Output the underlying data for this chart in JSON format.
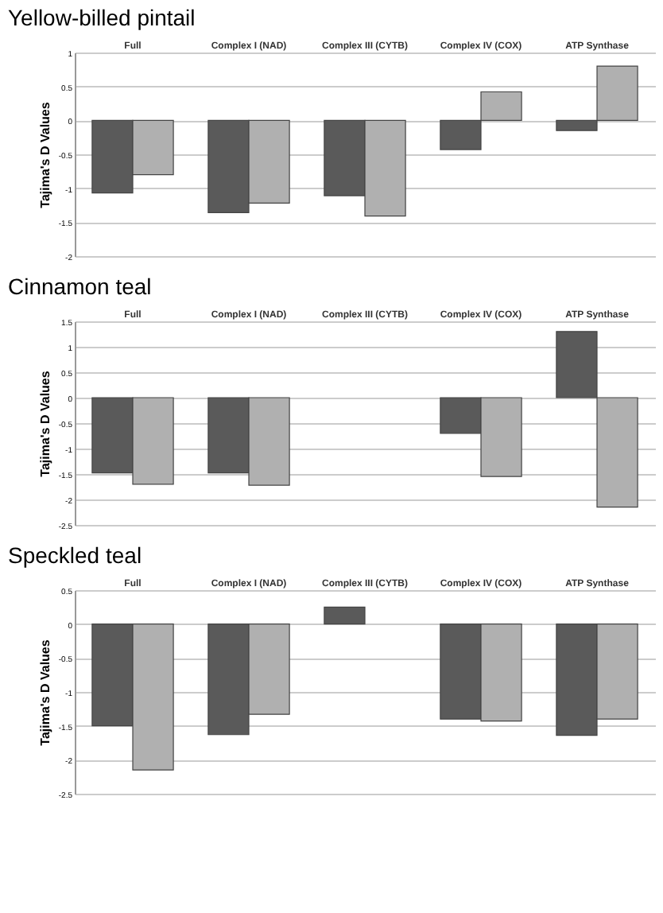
{
  "chart_data": [
    {
      "type": "bar",
      "title": "Yellow-billed pintail",
      "ylabel": "Tajima's D Values",
      "categories": [
        "Full",
        "Complex I (NAD)",
        "Complex III (CYTB)",
        "Complex IV (COX)",
        "ATP Synthase"
      ],
      "series": [
        {
          "color": "#5a5a5a",
          "values": [
            -1.07,
            -1.36,
            -1.11,
            -0.43,
            -0.15
          ]
        },
        {
          "color": "#b0b0b0",
          "values": [
            -0.8,
            -1.22,
            -1.41,
            0.42,
            0.8
          ]
        }
      ],
      "ylim": [
        -2,
        1
      ],
      "yticks": [
        -2,
        -1.5,
        -1,
        -0.5,
        0,
        0.5,
        1
      ],
      "grid": "y",
      "legend": false
    },
    {
      "type": "bar",
      "title": "Cinnamon teal",
      "ylabel": "Tajima's D Values",
      "categories": [
        "Full",
        "Complex I (NAD)",
        "Complex III (CYTB)",
        "Complex IV (COX)",
        "ATP Synthase"
      ],
      "series": [
        {
          "color": "#5a5a5a",
          "values": [
            -1.48,
            -1.48,
            null,
            -0.7,
            1.3
          ]
        },
        {
          "color": "#b0b0b0",
          "values": [
            -1.7,
            -1.72,
            null,
            -1.55,
            -2.15
          ]
        }
      ],
      "ylim": [
        -2.5,
        1.5
      ],
      "yticks": [
        -2.5,
        -2,
        -1.5,
        -1,
        -0.5,
        0,
        0.5,
        1,
        1.5
      ],
      "grid": "y",
      "legend": false
    },
    {
      "type": "bar",
      "title": "Speckled teal",
      "ylabel": "Tajima's D Values",
      "categories": [
        "Full",
        "Complex I (NAD)",
        "Complex III (CYTB)",
        "Complex IV (COX)",
        "ATP Synthase"
      ],
      "series": [
        {
          "color": "#5a5a5a",
          "values": [
            -1.5,
            -1.63,
            0.25,
            -1.4,
            -1.64
          ]
        },
        {
          "color": "#b0b0b0",
          "values": [
            -2.15,
            -1.33,
            null,
            -1.43,
            -1.4
          ]
        }
      ],
      "ylim": [
        -2.5,
        0.5
      ],
      "yticks": [
        -2.5,
        -2,
        -1.5,
        -1,
        -0.5,
        0,
        0.5
      ],
      "grid": "y",
      "legend": false
    }
  ]
}
